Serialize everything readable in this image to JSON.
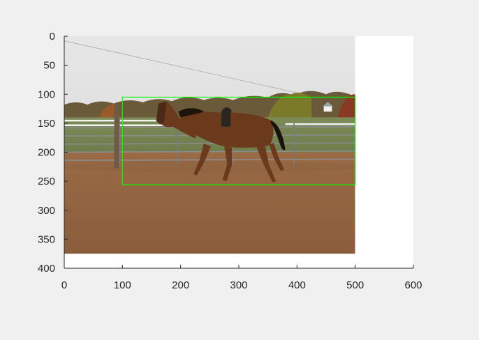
{
  "figure": {
    "background": "#f0f0f0",
    "axes_background": "#ffffff",
    "axis_color": "#262626",
    "detection_box_color": "#00ff00"
  },
  "chart_data": {
    "type": "image",
    "title": "",
    "xlabel": "",
    "ylabel": "",
    "xlim": [
      0,
      600
    ],
    "ylim": [
      0,
      400
    ],
    "y_direction": "reverse",
    "grid": false,
    "x_ticks": [
      0,
      100,
      200,
      300,
      400,
      500,
      600
    ],
    "y_ticks": [
      0,
      50,
      100,
      150,
      200,
      250,
      300,
      350,
      400
    ],
    "image": {
      "subject": "horse",
      "extent": {
        "x": [
          0,
          500
        ],
        "y": [
          0,
          375
        ]
      }
    },
    "annotations": [
      {
        "type": "rectangle",
        "x": [
          100,
          500
        ],
        "y": [
          105,
          256
        ],
        "color": "#00ff00"
      }
    ]
  }
}
